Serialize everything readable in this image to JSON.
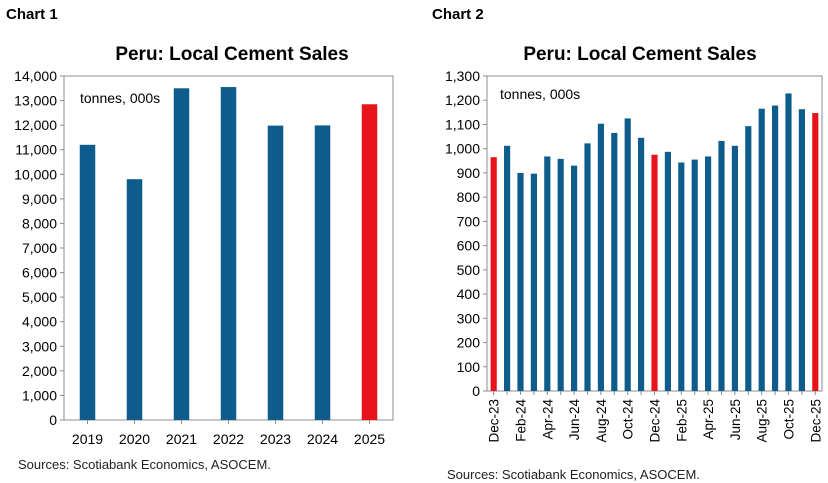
{
  "charts": [
    {
      "label": "Chart 1",
      "source": "Sources: Scotiabank Economics, ASOCEM."
    },
    {
      "label": "Chart 2",
      "source": "Sources: Scotiabank Economics, ASOCEM."
    }
  ],
  "colors": {
    "base": "#0d5c8c",
    "highlight": "#e8141b",
    "frame": "#8c8c8c"
  },
  "chart_data": [
    {
      "type": "bar",
      "title": "Peru: Local Cement Sales",
      "annotation": "tonnes, 000s",
      "categories": [
        "2019",
        "2020",
        "2021",
        "2022",
        "2023",
        "2024",
        "2025"
      ],
      "values": [
        11200,
        9800,
        13500,
        13550,
        11980,
        11990,
        12850
      ],
      "highlight": [
        false,
        false,
        false,
        false,
        false,
        false,
        true
      ],
      "ylim": [
        0,
        14000
      ],
      "yticks": [
        "0",
        "1,000",
        "2,000",
        "3,000",
        "4,000",
        "5,000",
        "6,000",
        "7,000",
        "8,000",
        "9,000",
        "10,000",
        "11,000",
        "12,000",
        "13,000",
        "14,000"
      ],
      "xlabel": "",
      "ylabel": "",
      "grid": false
    },
    {
      "type": "bar",
      "title": "Peru: Local Cement Sales",
      "annotation": "tonnes, 000s",
      "categories": [
        "Dec-23",
        "Jan-24",
        "Feb-24",
        "Mar-24",
        "Apr-24",
        "May-24",
        "Jun-24",
        "Jul-24",
        "Aug-24",
        "Sep-24",
        "Oct-24",
        "Nov-24",
        "Dec-24",
        "Jan-25",
        "Feb-25",
        "Mar-25",
        "Apr-25",
        "May-25",
        "Jun-25",
        "Jul-25",
        "Aug-25",
        "Sep-25",
        "Oct-25",
        "Nov-25",
        "Dec-25"
      ],
      "values": [
        965,
        1012,
        900,
        897,
        968,
        958,
        930,
        1022,
        1103,
        1065,
        1125,
        1045,
        975,
        987,
        943,
        955,
        968,
        1032,
        1012,
        1093,
        1165,
        1178,
        1228,
        1163,
        1147
      ],
      "highlight": [
        true,
        false,
        false,
        false,
        false,
        false,
        false,
        false,
        false,
        false,
        false,
        false,
        true,
        false,
        false,
        false,
        false,
        false,
        false,
        false,
        false,
        false,
        false,
        false,
        true
      ],
      "tick_labels": [
        "Dec-23",
        "Feb-24",
        "Apr-24",
        "Jun-24",
        "Aug-24",
        "Oct-24",
        "Dec-24",
        "Feb-25",
        "Apr-25",
        "Jun-25",
        "Aug-25",
        "Oct-25",
        "Dec-25"
      ],
      "ylim": [
        0,
        1300
      ],
      "yticks": [
        "0",
        "100",
        "200",
        "300",
        "400",
        "500",
        "600",
        "700",
        "800",
        "900",
        "1,000",
        "1,100",
        "1,200",
        "1,300"
      ],
      "xlabel": "",
      "ylabel": "",
      "grid": false
    }
  ]
}
